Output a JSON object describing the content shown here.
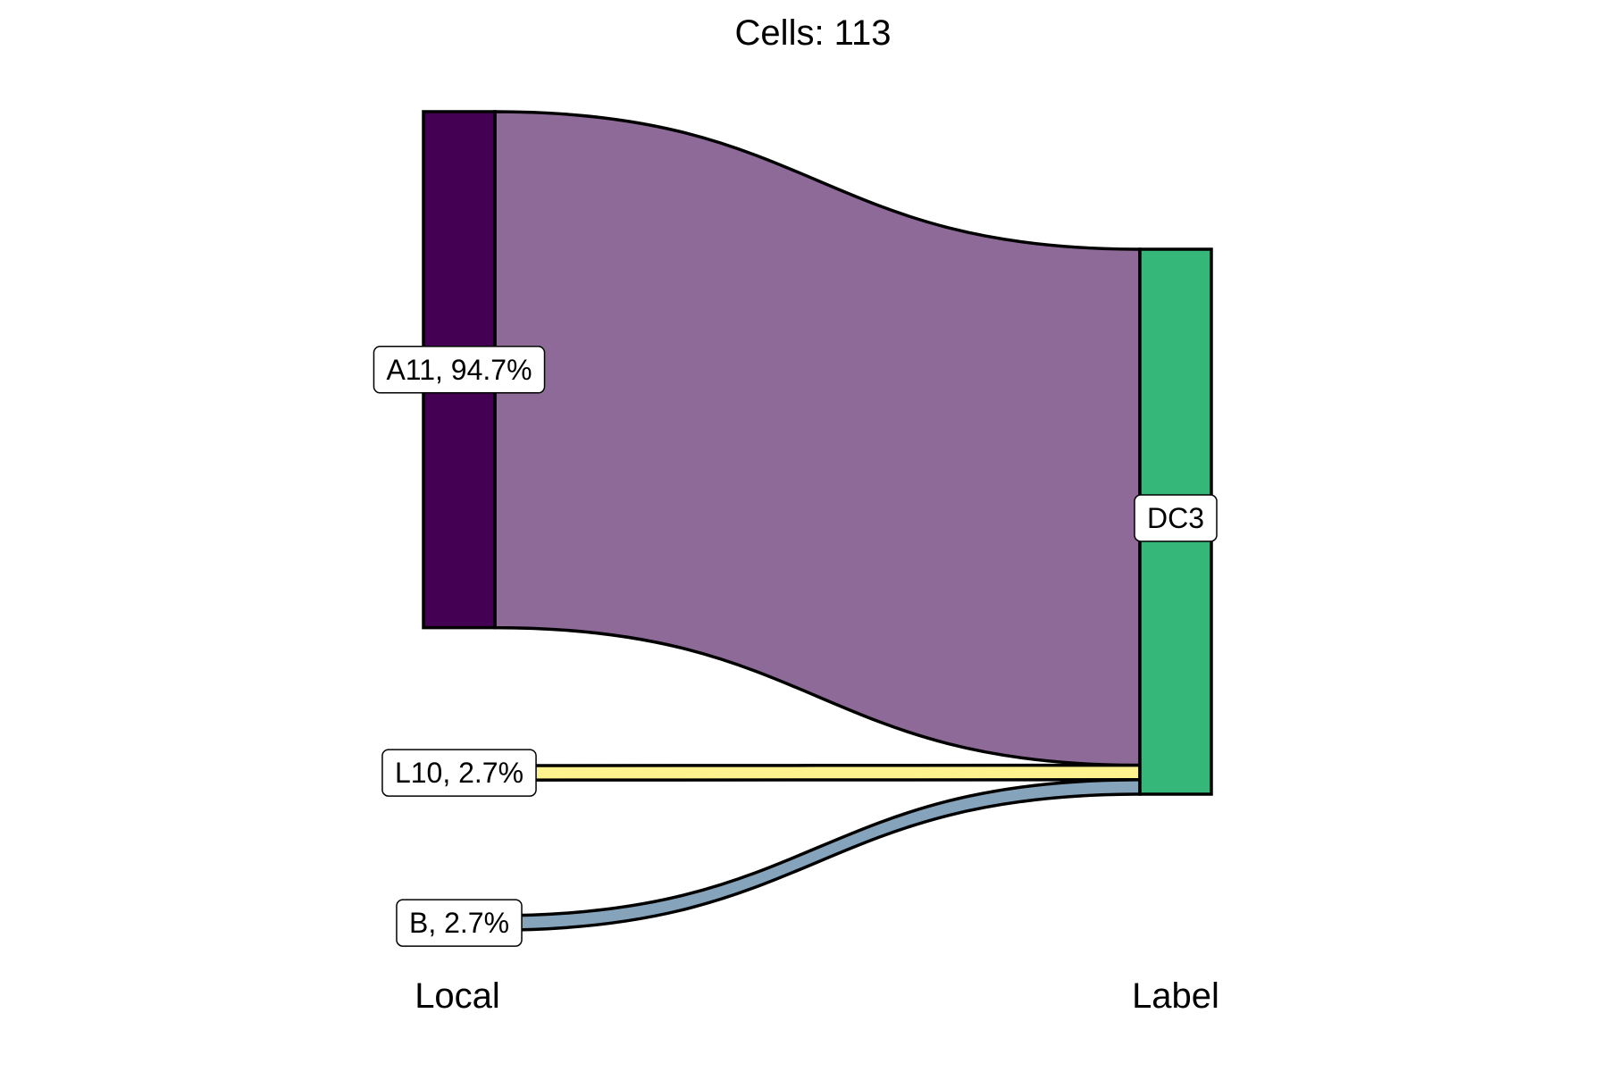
{
  "chart_data": {
    "type": "sankey",
    "title": "Cells:  113",
    "total": 113,
    "axes": [
      "Local",
      "Label"
    ],
    "nodes_left": [
      {
        "name": "A11",
        "pct": "94.7%",
        "count": 107,
        "color": "#440154"
      },
      {
        "name": "L10",
        "pct": "2.7%",
        "count": 3,
        "color": "#fde725"
      },
      {
        "name": "B",
        "pct": "2.7%",
        "count": 3,
        "color": "#3b6a93"
      }
    ],
    "nodes_right": [
      {
        "name": "DC3",
        "count": 113,
        "color": "#35b779"
      }
    ],
    "flows": [
      {
        "from": "A11",
        "to": "DC3",
        "value": 107,
        "color": "#8e6a99"
      },
      {
        "from": "L10",
        "to": "DC3",
        "value": 3,
        "color": "#fef28e"
      },
      {
        "from": "B",
        "to": "DC3",
        "value": 3,
        "color": "#85a3ba"
      }
    ]
  }
}
